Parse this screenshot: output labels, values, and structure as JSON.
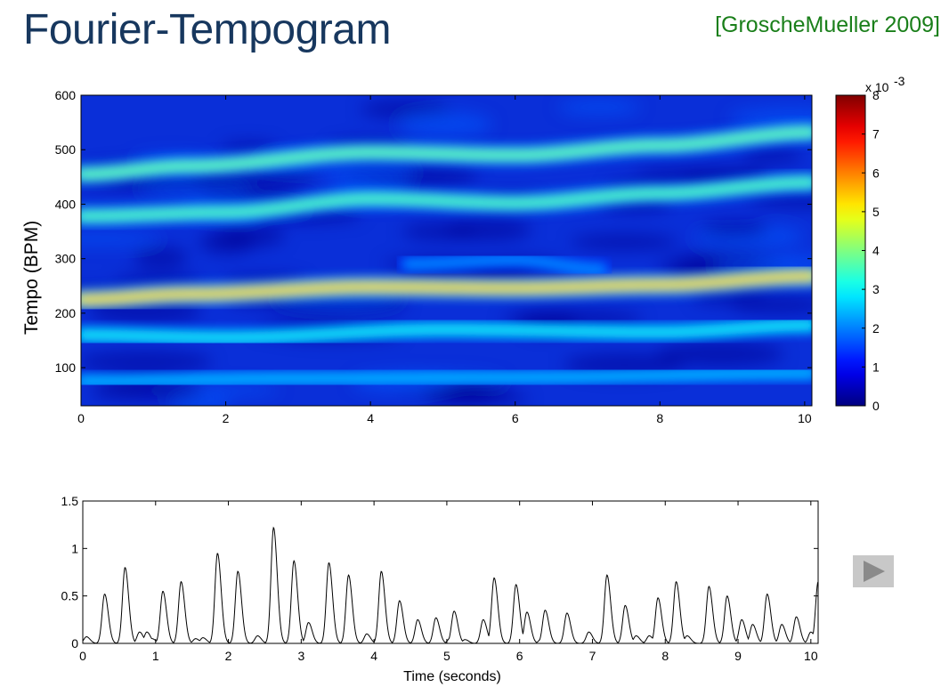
{
  "slide": {
    "title": "Fourier-Tempogram",
    "citation": "[GroscheMueller 2009]"
  },
  "colors": {
    "title": "#17375e",
    "citation": "#1a7f1a",
    "colormap": "jet"
  },
  "play_button": {
    "icon": "play-icon"
  },
  "chart_data": [
    {
      "type": "heatmap",
      "title": "",
      "xlabel": "",
      "ylabel": "Tempo (BPM)",
      "xlim": [
        0,
        10.1
      ],
      "ylim": [
        30,
        600
      ],
      "xticks": [
        0,
        2,
        4,
        6,
        8,
        10
      ],
      "yticks": [
        100,
        200,
        300,
        400,
        500,
        600
      ],
      "colorbar": {
        "range": [
          0,
          0.008
        ],
        "ticks": [
          0,
          1,
          2,
          3,
          4,
          5,
          6,
          7,
          8
        ],
        "exponent_label": "x 10",
        "exponent": "-3"
      },
      "bands": [
        {
          "name": "",
          "tempo_points": [
            [
              0,
              225
            ],
            [
              1.5,
              235
            ],
            [
              4,
              248
            ],
            [
              6,
              246
            ],
            [
              8,
              252
            ],
            [
              10.1,
              268
            ]
          ],
          "intensity": 0.72
        },
        {
          "name": "",
          "tempo_points": [
            [
              0,
              455
            ],
            [
              1.5,
              470
            ],
            [
              4,
              495
            ],
            [
              6,
              490
            ],
            [
              8,
              508
            ],
            [
              10.1,
              532
            ]
          ],
          "intensity": 0.5
        },
        {
          "name": "",
          "tempo_points": [
            [
              0,
              378
            ],
            [
              2,
              385
            ],
            [
              4,
              410
            ],
            [
              6,
              402
            ],
            [
              8,
              420
            ],
            [
              10.1,
              440
            ]
          ],
          "intensity": 0.48
        },
        {
          "name": "",
          "tempo_points": [
            [
              0,
              160
            ],
            [
              2,
              155
            ],
            [
              5,
              170
            ],
            [
              8,
              165
            ],
            [
              10.1,
              178
            ]
          ],
          "intensity": 0.4
        },
        {
          "name": "",
          "tempo_points": [
            [
              0,
              75
            ],
            [
              3,
              80
            ],
            [
              6,
              82
            ],
            [
              10.1,
              90
            ]
          ],
          "intensity": 0.33
        },
        {
          "name": "",
          "tempo_points": [
            [
              4.5,
              290
            ],
            [
              6,
              298
            ],
            [
              7.2,
              280
            ]
          ],
          "intensity": 0.28
        }
      ]
    },
    {
      "type": "line",
      "title": "",
      "xlabel": "Time (seconds)",
      "ylabel": "",
      "xlim": [
        0,
        10.1
      ],
      "ylim": [
        0,
        1.5
      ],
      "xticks": [
        0,
        1,
        2,
        3,
        4,
        5,
        6,
        7,
        8,
        9,
        10
      ],
      "yticks": [
        0,
        0.5,
        1,
        1.5
      ],
      "peaks": [
        [
          0.05,
          0.07
        ],
        [
          0.3,
          0.52
        ],
        [
          0.58,
          0.8
        ],
        [
          0.78,
          0.12
        ],
        [
          0.88,
          0.12
        ],
        [
          0.95,
          0.05
        ],
        [
          1.1,
          0.55
        ],
        [
          1.35,
          0.65
        ],
        [
          1.55,
          0.05
        ],
        [
          1.65,
          0.06
        ],
        [
          1.85,
          0.95
        ],
        [
          2.1,
          0.1
        ],
        [
          2.13,
          0.76
        ],
        [
          2.4,
          0.08
        ],
        [
          2.62,
          1.22
        ],
        [
          2.9,
          0.87
        ],
        [
          3.1,
          0.22
        ],
        [
          3.38,
          0.85
        ],
        [
          3.65,
          0.72
        ],
        [
          3.9,
          0.1
        ],
        [
          4.1,
          0.76
        ],
        [
          4.35,
          0.45
        ],
        [
          4.6,
          0.25
        ],
        [
          4.85,
          0.27
        ],
        [
          5.05,
          0.06
        ],
        [
          5.1,
          0.34
        ],
        [
          5.25,
          0.04
        ],
        [
          5.5,
          0.25
        ],
        [
          5.65,
          0.69
        ],
        [
          5.95,
          0.62
        ],
        [
          6.1,
          0.33
        ],
        [
          6.3,
          0.05
        ],
        [
          6.35,
          0.35
        ],
        [
          6.65,
          0.32
        ],
        [
          6.95,
          0.12
        ],
        [
          7.2,
          0.72
        ],
        [
          7.45,
          0.4
        ],
        [
          7.6,
          0.08
        ],
        [
          7.78,
          0.08
        ],
        [
          7.9,
          0.48
        ],
        [
          8.15,
          0.65
        ],
        [
          8.3,
          0.08
        ],
        [
          8.6,
          0.6
        ],
        [
          8.85,
          0.5
        ],
        [
          9.05,
          0.25
        ],
        [
          9.2,
          0.2
        ],
        [
          9.4,
          0.52
        ],
        [
          9.6,
          0.2
        ],
        [
          9.8,
          0.28
        ],
        [
          10.0,
          0.12
        ],
        [
          10.1,
          0.65
        ]
      ]
    }
  ]
}
